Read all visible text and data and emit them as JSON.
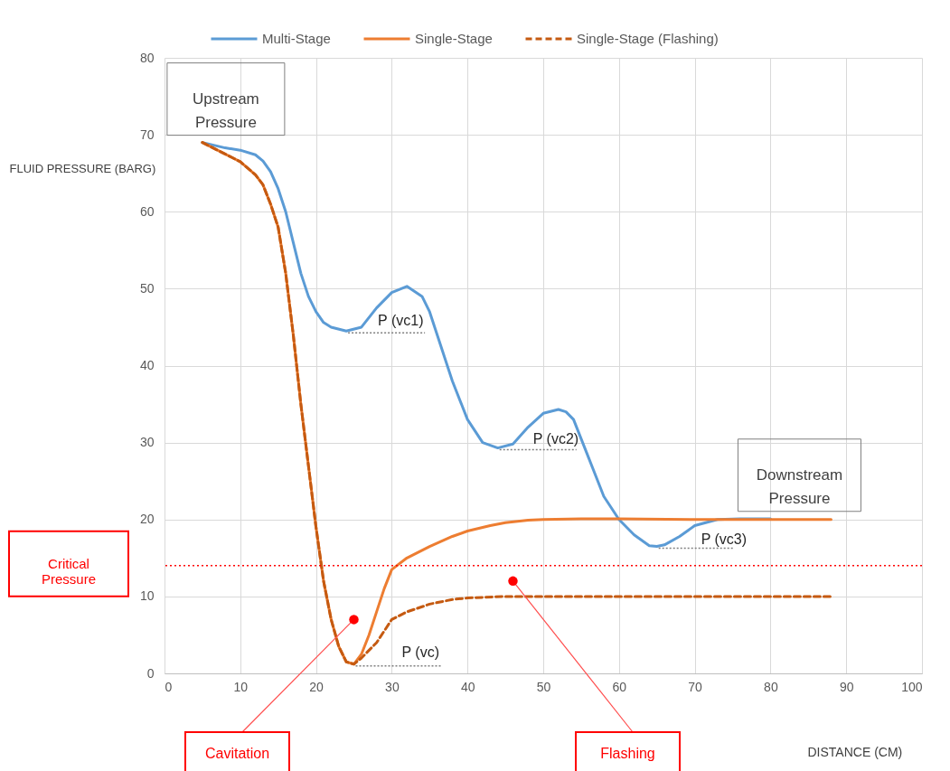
{
  "chart_data": {
    "type": "line",
    "xlabel": "DISTANCE (CM)",
    "ylabel": "FLUID PRESSURE (BARG)",
    "xlim": [
      0,
      100
    ],
    "xticks": [
      0,
      10,
      20,
      30,
      40,
      50,
      60,
      70,
      80,
      90,
      100
    ],
    "ylim": [
      0,
      80
    ],
    "yticks": [
      0,
      10,
      20,
      30,
      40,
      50,
      60,
      70,
      80
    ],
    "grid": true,
    "legend": "top",
    "series": [
      {
        "name": "Multi-Stage",
        "color": "#5b9bd5",
        "line_style": "solid",
        "x": [
          5,
          8,
          10,
          12,
          13,
          14,
          15,
          16,
          17,
          18,
          19,
          20,
          21,
          22,
          24,
          26,
          28,
          30,
          32,
          34,
          35,
          36,
          38,
          40,
          42,
          44,
          46,
          48,
          50,
          52,
          53,
          54,
          56,
          58,
          60,
          62,
          64,
          65,
          66,
          68,
          70,
          73,
          76,
          80
        ],
        "values": [
          69,
          68.3,
          68,
          67.4,
          66.6,
          65.2,
          63,
          60,
          56,
          52,
          49,
          47,
          45.6,
          45,
          44.5,
          45,
          47.5,
          49.5,
          50.3,
          49,
          47,
          44,
          38,
          33,
          30,
          29.3,
          29.8,
          32,
          33.8,
          34.3,
          34,
          33,
          28,
          23,
          20,
          18,
          16.6,
          16.5,
          16.7,
          17.8,
          19.2,
          20,
          20.1,
          20.1
        ]
      },
      {
        "name": "Single-Stage",
        "color": "#ed7d31",
        "line_style": "solid",
        "x": [
          5,
          8,
          10,
          12,
          13,
          14,
          15,
          16,
          17,
          18,
          19,
          20,
          21,
          22,
          23,
          24,
          25,
          26,
          27,
          28,
          29,
          30,
          32,
          35,
          38,
          40,
          43,
          45,
          48,
          50,
          55,
          60,
          70,
          80,
          88
        ],
        "values": [
          69,
          67.5,
          66.5,
          64.8,
          63.5,
          61,
          58,
          52,
          44,
          35,
          27,
          19,
          12,
          7,
          3.5,
          1.5,
          1.2,
          2.5,
          5,
          8,
          11,
          13.5,
          15,
          16.5,
          17.8,
          18.5,
          19.2,
          19.6,
          19.9,
          20,
          20.1,
          20.1,
          20,
          20,
          20
        ]
      },
      {
        "name": "Single-Stage (Flashing)",
        "color": "#c55a11",
        "line_style": "dashed",
        "x": [
          5,
          8,
          10,
          12,
          13,
          14,
          15,
          16,
          17,
          18,
          19,
          20,
          21,
          22,
          23,
          24,
          25,
          26,
          28,
          30,
          32,
          35,
          38,
          40,
          45,
          50,
          60,
          70,
          80,
          88
        ],
        "values": [
          69,
          67.5,
          66.5,
          64.8,
          63.5,
          61,
          58,
          52,
          44,
          35,
          27,
          19,
          12,
          7,
          3.5,
          1.5,
          1.2,
          2,
          4,
          7,
          8,
          9,
          9.6,
          9.8,
          10,
          10,
          10,
          10,
          10,
          10
        ]
      }
    ],
    "ref_lines": [
      {
        "axis": "y",
        "value": 14,
        "label": "Critical Pressure",
        "color": "#ff0000",
        "line_style": "dotted"
      }
    ],
    "annotations": [
      {
        "text": "Upstream Pressure",
        "x": 5,
        "y": 69
      },
      {
        "text": "Downstream Pressure",
        "x": 88,
        "y": 20
      },
      {
        "text": "P (vc1)",
        "x": 24,
        "y": 44.5
      },
      {
        "text": "P (vc2)",
        "x": 44,
        "y": 29.3
      },
      {
        "text": "P (vc3)",
        "x": 65,
        "y": 16.5
      },
      {
        "text": "P (vc)",
        "x": 25,
        "y": 1.2
      },
      {
        "text": "Cavitation",
        "x": 25,
        "y": 7
      },
      {
        "text": "Flashing",
        "x": 46,
        "y": 12
      }
    ]
  }
}
